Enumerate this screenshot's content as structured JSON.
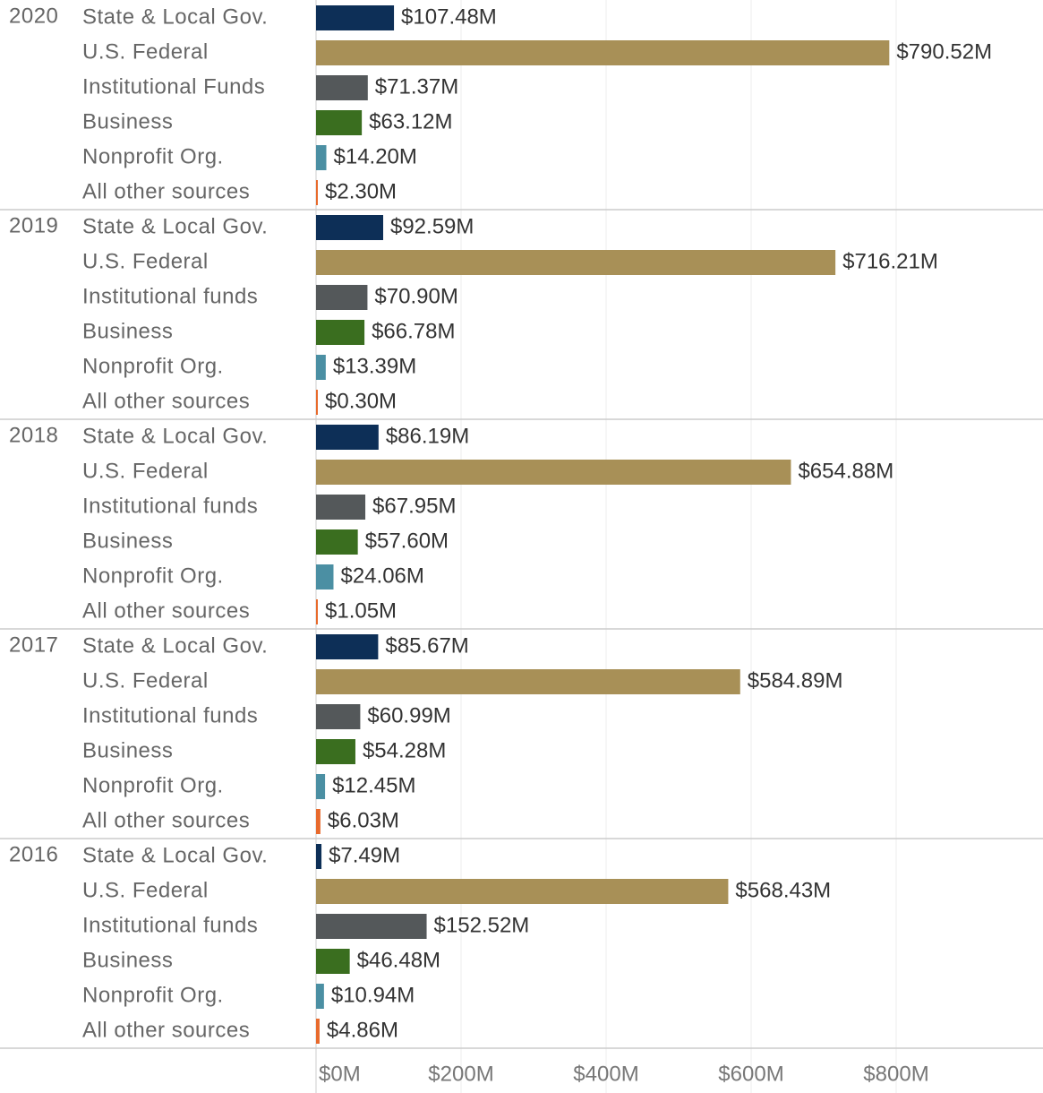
{
  "chart_data": {
    "type": "bar",
    "orientation": "horizontal",
    "colors": [
      "#0d2f57",
      "#a89057",
      "#54585a",
      "#3a6e1f",
      "#4b8fa3",
      "#e86a2c"
    ],
    "groups": [
      {
        "name": "2020",
        "categories": [
          "State & Local Gov.",
          "U.S. Federal",
          "Institutional Funds",
          "Business",
          "Nonprofit Org.",
          "All other sources"
        ],
        "values": [
          107.48,
          790.52,
          71.37,
          63.12,
          14.2,
          2.3
        ],
        "value_labels": [
          "$107.48M",
          "$790.52M",
          "$71.37M",
          "$63.12M",
          "$14.20M",
          "$2.30M"
        ]
      },
      {
        "name": "2019",
        "categories": [
          "State & Local Gov.",
          "U.S. Federal",
          "Institutional funds",
          "Business",
          "Nonprofit Org.",
          "All other sources"
        ],
        "values": [
          92.59,
          716.21,
          70.9,
          66.78,
          13.39,
          0.3
        ],
        "value_labels": [
          "$92.59M",
          "$716.21M",
          "$70.90M",
          "$66.78M",
          "$13.39M",
          "$0.30M"
        ]
      },
      {
        "name": "2018",
        "categories": [
          "State & Local Gov.",
          "U.S. Federal",
          "Institutional funds",
          "Business",
          "Nonprofit Org.",
          "All other sources"
        ],
        "values": [
          86.19,
          654.88,
          67.95,
          57.6,
          24.06,
          1.05
        ],
        "value_labels": [
          "$86.19M",
          "$654.88M",
          "$67.95M",
          "$57.60M",
          "$24.06M",
          "$1.05M"
        ]
      },
      {
        "name": "2017",
        "categories": [
          "State & Local Gov.",
          "U.S. Federal",
          "Institutional funds",
          "Business",
          "Nonprofit Org.",
          "All other sources"
        ],
        "values": [
          85.67,
          584.89,
          60.99,
          54.28,
          12.45,
          6.03
        ],
        "value_labels": [
          "$85.67M",
          "$584.89M",
          "$60.99M",
          "$54.28M",
          "$12.45M",
          "$6.03M"
        ]
      },
      {
        "name": "2016",
        "categories": [
          "State & Local Gov.",
          "U.S. Federal",
          "Institutional funds",
          "Business",
          "Nonprofit Org.",
          "All other sources"
        ],
        "values": [
          7.49,
          568.43,
          152.52,
          46.48,
          10.94,
          4.86
        ],
        "value_labels": [
          "$7.49M",
          "$568.43M",
          "$152.52M",
          "$46.48M",
          "$10.94M",
          "$4.86M"
        ]
      }
    ],
    "xlim": [
      0,
      1000
    ],
    "xticks": [
      {
        "value": 0,
        "label": "$0M"
      },
      {
        "value": 200,
        "label": "$200M"
      },
      {
        "value": 400,
        "label": "$400M"
      },
      {
        "value": 600,
        "label": "$600M"
      },
      {
        "value": 800,
        "label": "$800M"
      }
    ],
    "grid": true
  }
}
